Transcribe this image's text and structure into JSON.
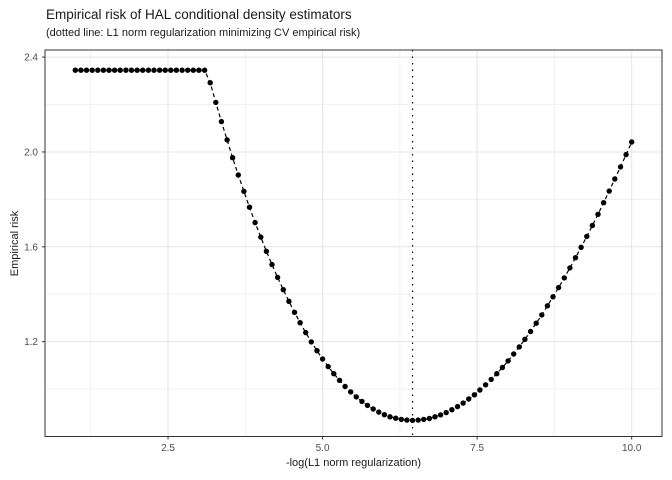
{
  "chart_data": {
    "type": "scatter",
    "title": "Empirical risk of HAL conditional density estimators",
    "subtitle": "(dotted line: L1 norm regularization minimizing CV empirical risk)",
    "xlabel": "-log(L1 norm regularization)",
    "ylabel": "Empirical risk",
    "xlim": [
      0.51,
      10.49
    ],
    "ylim": [
      0.8,
      2.43
    ],
    "x_ticks": [
      2.5,
      5,
      7.5,
      10
    ],
    "x_tick_labels": [
      "2.5",
      "5.0",
      "7.5",
      "10.0"
    ],
    "y_ticks": [
      1.2,
      1.6,
      2,
      2.4
    ],
    "y_tick_labels": [
      "1.2",
      "1.6",
      "2.0",
      "2.4"
    ],
    "x_minor_ticks": [
      1.25,
      3.75,
      6.25,
      8.75
    ],
    "y_minor_ticks": [
      1.0,
      1.4,
      1.8,
      2.2
    ],
    "grid": true,
    "legend": "none",
    "vline": {
      "x": 6.455,
      "style": "dotted",
      "meaning": "L1 norm regularization minimizing CV empirical risk"
    },
    "series": [
      {
        "name": "empirical-risk",
        "marker": "filled-circle",
        "line": "dashed",
        "x": [
          1.0,
          1.091,
          1.182,
          1.273,
          1.364,
          1.455,
          1.545,
          1.636,
          1.727,
          1.818,
          1.909,
          2.0,
          2.091,
          2.182,
          2.273,
          2.364,
          2.455,
          2.545,
          2.636,
          2.727,
          2.818,
          2.909,
          3.0,
          3.091,
          3.182,
          3.273,
          3.364,
          3.455,
          3.545,
          3.636,
          3.727,
          3.818,
          3.909,
          4.0,
          4.091,
          4.182,
          4.273,
          4.364,
          4.455,
          4.545,
          4.636,
          4.727,
          4.818,
          4.909,
          5.0,
          5.091,
          5.182,
          5.273,
          5.364,
          5.455,
          5.545,
          5.636,
          5.727,
          5.818,
          5.909,
          6.0,
          6.091,
          6.182,
          6.273,
          6.364,
          6.455,
          6.545,
          6.636,
          6.727,
          6.818,
          6.909,
          7.0,
          7.091,
          7.182,
          7.273,
          7.364,
          7.455,
          7.545,
          7.636,
          7.727,
          7.818,
          7.909,
          8.0,
          8.091,
          8.182,
          8.273,
          8.364,
          8.455,
          8.545,
          8.636,
          8.727,
          8.818,
          8.909,
          9.0,
          9.091,
          9.182,
          9.273,
          9.364,
          9.455,
          9.545,
          9.636,
          9.727,
          9.818,
          9.909,
          10.0
        ],
        "y": [
          2.345,
          2.345,
          2.345,
          2.345,
          2.345,
          2.345,
          2.345,
          2.345,
          2.345,
          2.345,
          2.345,
          2.345,
          2.345,
          2.345,
          2.345,
          2.345,
          2.345,
          2.345,
          2.345,
          2.345,
          2.345,
          2.345,
          2.345,
          2.345,
          2.292,
          2.209,
          2.128,
          2.051,
          1.976,
          1.903,
          1.834,
          1.767,
          1.702,
          1.641,
          1.581,
          1.525,
          1.471,
          1.419,
          1.37,
          1.324,
          1.28,
          1.238,
          1.199,
          1.162,
          1.127,
          1.095,
          1.065,
          1.037,
          1.011,
          0.988,
          0.967,
          0.948,
          0.931,
          0.916,
          0.903,
          0.892,
          0.883,
          0.877,
          0.872,
          0.869,
          0.868,
          0.869,
          0.872,
          0.876,
          0.883,
          0.891,
          0.901,
          0.913,
          0.926,
          0.941,
          0.958,
          0.976,
          0.996,
          1.018,
          1.041,
          1.065,
          1.091,
          1.119,
          1.148,
          1.178,
          1.21,
          1.243,
          1.278,
          1.313,
          1.351,
          1.389,
          1.428,
          1.469,
          1.511,
          1.554,
          1.598,
          1.644,
          1.69,
          1.737,
          1.786,
          1.835,
          1.886,
          1.937,
          1.989,
          2.042
        ]
      }
    ],
    "colors": {
      "point": "#000000",
      "line": "#000000",
      "vline": "#000000",
      "grid_major": "#e4e4e4",
      "grid_minor": "#efefef",
      "panel_border": "#333333",
      "tick": "#333333",
      "tick_text": "#4d4d4d",
      "text": "#1a1a1a"
    }
  }
}
